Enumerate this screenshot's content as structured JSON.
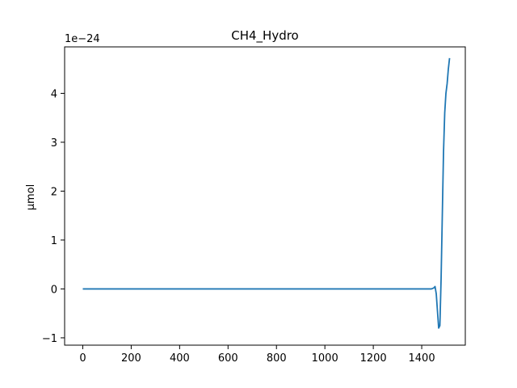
{
  "chart_data": {
    "type": "line",
    "title": "CH4_Hydro",
    "xlabel": "",
    "ylabel": "µmol",
    "y_offset_label": "1e−24",
    "xlim": [
      -75,
      1580
    ],
    "ylim": [
      -1.15,
      4.95
    ],
    "x_ticks": [
      0,
      200,
      400,
      600,
      800,
      1000,
      1200,
      1400
    ],
    "y_ticks": [
      -1,
      0,
      1,
      2,
      3,
      4
    ],
    "grid": false,
    "line_color": "#1f77b4",
    "series": [
      {
        "x": [
          0,
          200,
          400,
          600,
          800,
          1000,
          1200,
          1400,
          1440,
          1450,
          1455,
          1460,
          1465,
          1470,
          1475,
          1480,
          1485,
          1490,
          1495,
          1500,
          1505,
          1510,
          1515
        ],
        "y": [
          0,
          0,
          0,
          0,
          0,
          0,
          0,
          0,
          0,
          0.02,
          0.05,
          -0.1,
          -0.45,
          -0.8,
          -0.75,
          0.2,
          1.5,
          2.8,
          3.6,
          4.0,
          4.2,
          4.5,
          4.72
        ]
      }
    ]
  }
}
